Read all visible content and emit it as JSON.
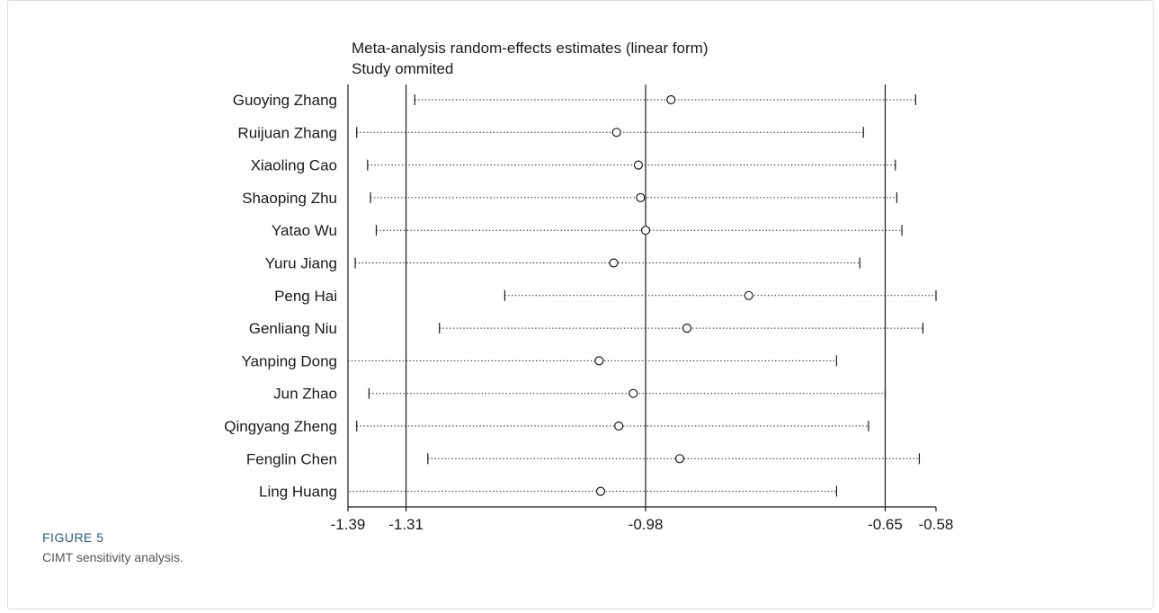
{
  "figure": {
    "label": "FIGURE 5",
    "caption": "CIMT sensitivity analysis."
  },
  "colors": {
    "ink": "#1a1a1a",
    "caption_label": "#2a5f7a",
    "caption_text": "#555555"
  },
  "chart_data": {
    "type": "forest",
    "title": "Meta-analysis random-effects estimates (linear form)",
    "subtitle": "Study ommited",
    "xlim": [
      -1.39,
      -0.58
    ],
    "xticks": [
      "-1.39",
      "-1.31",
      "-0.98",
      "-0.65",
      "-0.58"
    ],
    "reference_lines": [
      -1.31,
      -0.98,
      -0.65
    ],
    "studies": [
      {
        "name": "Guoying Zhang",
        "estimate": -0.945,
        "lower": -1.298,
        "upper": -0.608
      },
      {
        "name": "Ruijuan Zhang",
        "estimate": -1.02,
        "lower": -1.378,
        "upper": -0.68
      },
      {
        "name": "Xiaoling Cao",
        "estimate": -0.99,
        "lower": -1.363,
        "upper": -0.636
      },
      {
        "name": "Shaoping Zhu",
        "estimate": -0.987,
        "lower": -1.359,
        "upper": -0.634
      },
      {
        "name": "Yatao Wu",
        "estimate": -0.98,
        "lower": -1.351,
        "upper": -0.627
      },
      {
        "name": "Yuru Jiang",
        "estimate": -1.024,
        "lower": -1.38,
        "upper": -0.685
      },
      {
        "name": "Peng Hai",
        "estimate": -0.838,
        "lower": -1.174,
        "upper": -0.58
      },
      {
        "name": "Genliang Niu",
        "estimate": -0.923,
        "lower": -1.264,
        "upper": -0.598
      },
      {
        "name": "Yanping Dong",
        "estimate": -1.044,
        "lower": -1.39,
        "upper": -0.717
      },
      {
        "name": "Jun Zhao",
        "estimate": -0.997,
        "lower": -1.361,
        "upper": -0.65
      },
      {
        "name": "Qingyang Zheng",
        "estimate": -1.017,
        "lower": -1.378,
        "upper": -0.673
      },
      {
        "name": "Fenglin Chen",
        "estimate": -0.933,
        "lower": -1.28,
        "upper": -0.603
      },
      {
        "name": "Ling Huang",
        "estimate": -1.042,
        "lower": -1.388,
        "upper": -0.717
      }
    ]
  }
}
